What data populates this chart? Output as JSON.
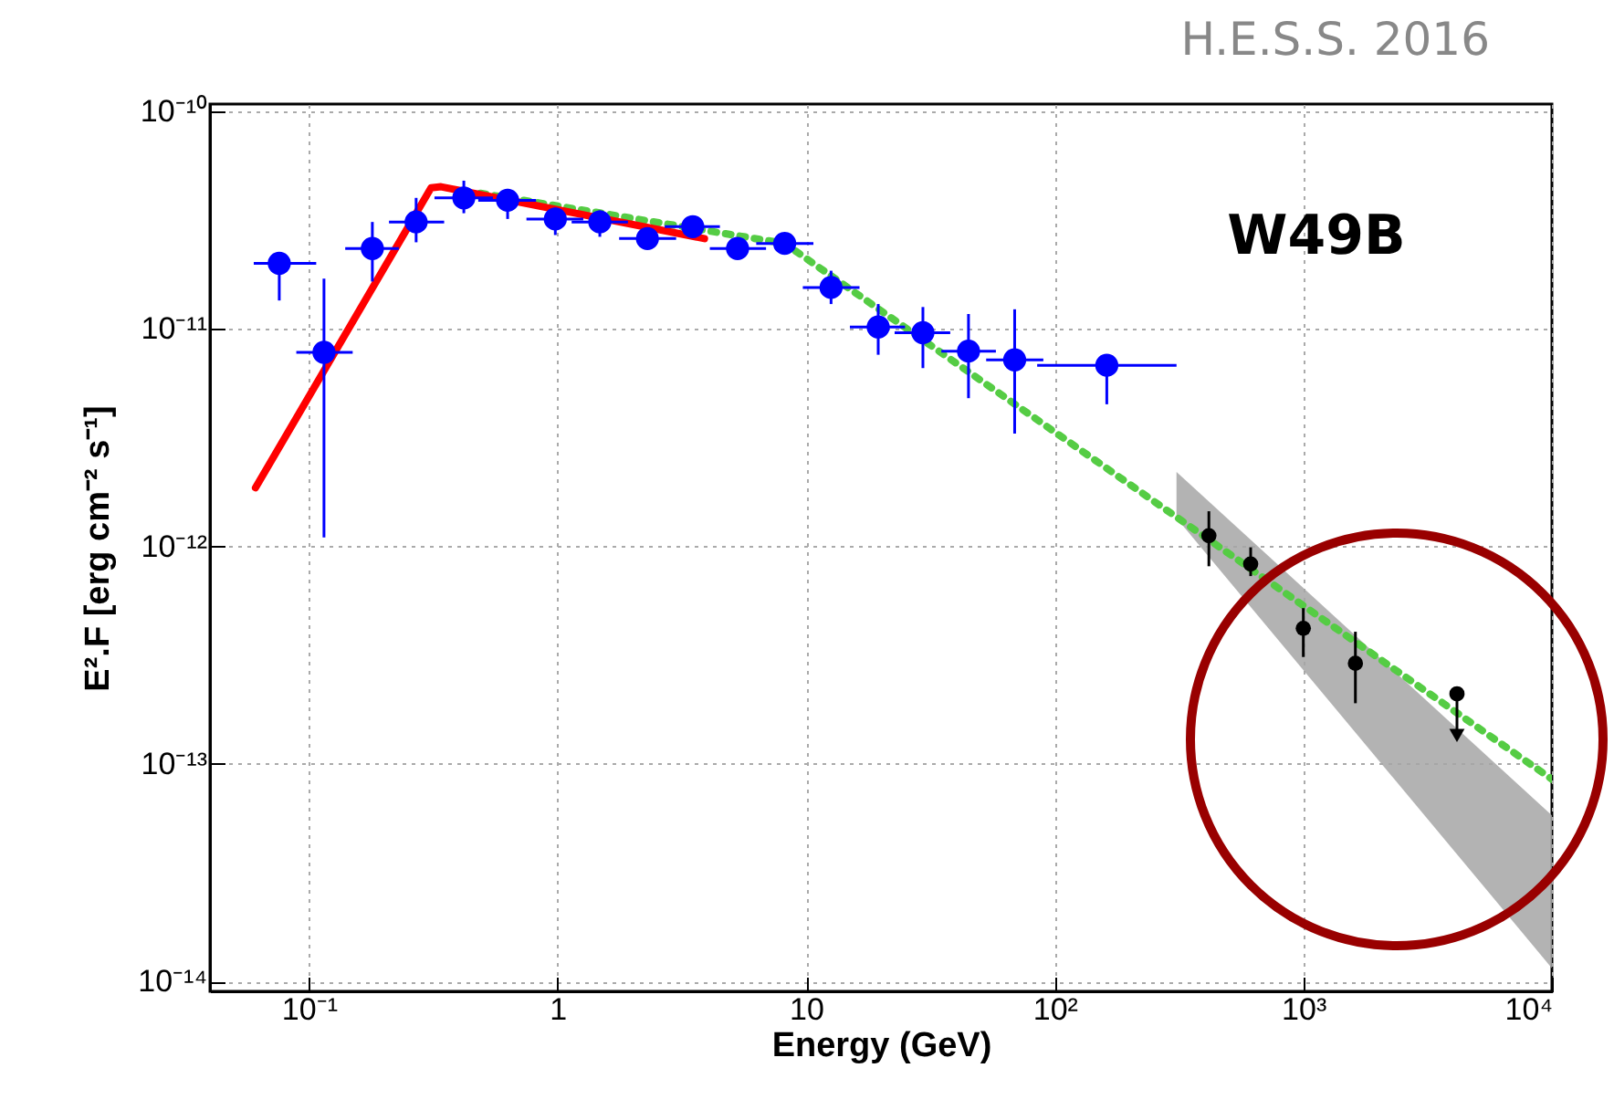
{
  "chart_data": {
    "type": "scatter",
    "title": "W49B",
    "xlabel": "Energy (GeV)",
    "ylabel": "E².F [erg cm⁻² s⁻¹]",
    "annotations": [
      "H.E.S.S. 2016"
    ],
    "log": "xy",
    "grid": true,
    "xlim": [
      0.04,
      10000
    ],
    "xticks": [
      {
        "value": 0.1,
        "label": "10⁻¹"
      },
      1,
      10,
      {
        "value": 100,
        "label": "10²"
      },
      {
        "value": 1000,
        "label": "10³"
      },
      {
        "value": 10000,
        "label": "10⁴"
      }
    ],
    "ylim": [
      9e-15,
      1.08e-10
    ],
    "yticks": [
      {
        "value": 1e-14,
        "label": "10⁻¹⁴"
      },
      {
        "value": 1e-13,
        "label": "10⁻¹³"
      },
      {
        "value": 1e-12,
        "label": "10⁻¹²"
      },
      {
        "value": 1e-11,
        "label": "10⁻¹¹"
      },
      {
        "value": 1e-10,
        "label": "10⁻¹⁰"
      }
    ],
    "series": [
      {
        "type": "area",
        "color": "#a6a6a6",
        "x": [
          309,
          10000
        ],
        "values": [
          null,
          null
        ],
        "lower": [
          1.35e-12,
          1.15e-14
        ],
        "upper": [
          2.2e-12,
          5.8e-14
        ]
      },
      {
        "type": "line",
        "color": "#55cc44",
        "line_style": "dotted",
        "x": [
          0.49,
          8.2,
          10000
        ],
        "values": [
          4.2e-11,
          2.47e-11,
          8.5e-14
        ]
      },
      {
        "type": "line",
        "color": "#ff0000",
        "line_style": "solid",
        "x": [
          0.061,
          0.31,
          0.34,
          3.9
        ],
        "values": [
          1.86e-12,
          4.45e-11,
          4.5e-11,
          2.6e-11
        ]
      },
      {
        "color": "#0000ff",
        "marker": "circle",
        "x": [
          0.115,
          0.18,
          0.27,
          0.42,
          0.63,
          0.98,
          1.48,
          2.3,
          3.5,
          5.3,
          8.2,
          12.6,
          19.5,
          29.5,
          45,
          69
        ],
        "values": [
          7.8e-12,
          2.34e-11,
          3.1e-11,
          4e-11,
          3.9e-11,
          3.2e-11,
          3.1e-11,
          2.6e-11,
          2.95e-11,
          2.34e-11,
          2.47e-11,
          1.55e-11,
          1.02e-11,
          9.6e-12,
          7.9e-12,
          7.2e-12
        ],
        "errors": [
          [
            1.1e-12,
            1.7e-11
          ],
          [
            1.65e-11,
            3.1e-11
          ],
          [
            2.5e-11,
            4e-11
          ],
          [
            3.4e-11,
            4.8e-11
          ],
          [
            3.2e-11,
            4.4e-11
          ],
          [
            2.7e-11,
            3.6e-11
          ],
          [
            2.65e-11,
            3.5e-11
          ],
          [
            2.4e-11,
            2.9e-11
          ],
          [
            2.7e-11,
            3.2e-11
          ],
          [
            2.2e-11,
            2.6e-11
          ],
          [
            2.3e-11,
            2.7e-11
          ],
          [
            1.3e-11,
            1.85e-11
          ],
          [
            7.6e-12,
            1.3e-11
          ],
          [
            6.6e-12,
            1.26e-11
          ],
          [
            4.8e-12,
            1.17e-11
          ],
          [
            3.3e-12,
            1.23e-11
          ]
        ],
        "xerrors": [
          [
            0.089,
            0.15
          ],
          [
            0.14,
            0.23
          ],
          [
            0.21,
            0.35
          ],
          [
            0.32,
            0.55
          ],
          [
            0.48,
            0.82
          ],
          [
            0.75,
            1.27
          ],
          [
            1.14,
            1.92
          ],
          [
            1.77,
            3.0
          ],
          [
            2.7,
            4.5
          ],
          [
            4.1,
            6.9
          ],
          [
            6.3,
            10.7
          ],
          [
            9.7,
            16.4
          ],
          [
            15,
            25
          ],
          [
            22.7,
            38
          ],
          [
            35,
            58
          ],
          [
            53,
            90
          ]
        ]
      },
      {
        "color": "#0000ff",
        "marker": "circle",
        "x": [
          0.076,
          162
        ],
        "values": [
          2e-11,
          6.8e-12
        ],
        "errors": [
          [
            1.35e-11,
            2e-11
          ],
          [
            4.5e-12,
            6.8e-12
          ]
        ],
        "xerrors": [
          [
            0.06,
            0.107
          ],
          [
            85,
            309
          ]
        ]
      },
      {
        "color": "#000000",
        "marker": "circle",
        "x": [
          417,
          614,
          1000,
          1620,
          4150
        ],
        "values": [
          1.12e-12,
          8.3e-13,
          4.2e-13,
          2.9e-13,
          2.1e-13
        ],
        "errors": [
          [
            8.1e-13,
            1.45e-12
          ],
          [
            7.3e-13,
            9.9e-13
          ],
          [
            3.1e-13,
            5.2e-13
          ],
          [
            1.9e-13,
            4.05e-13
          ],
          [
            1.35e-13,
            2.1e-13
          ]
        ]
      },
      {
        "color": "#000000",
        "marker": "triangle",
        "x": [
          4150
        ],
        "values": [
          1.35e-13
        ]
      }
    ]
  }
}
